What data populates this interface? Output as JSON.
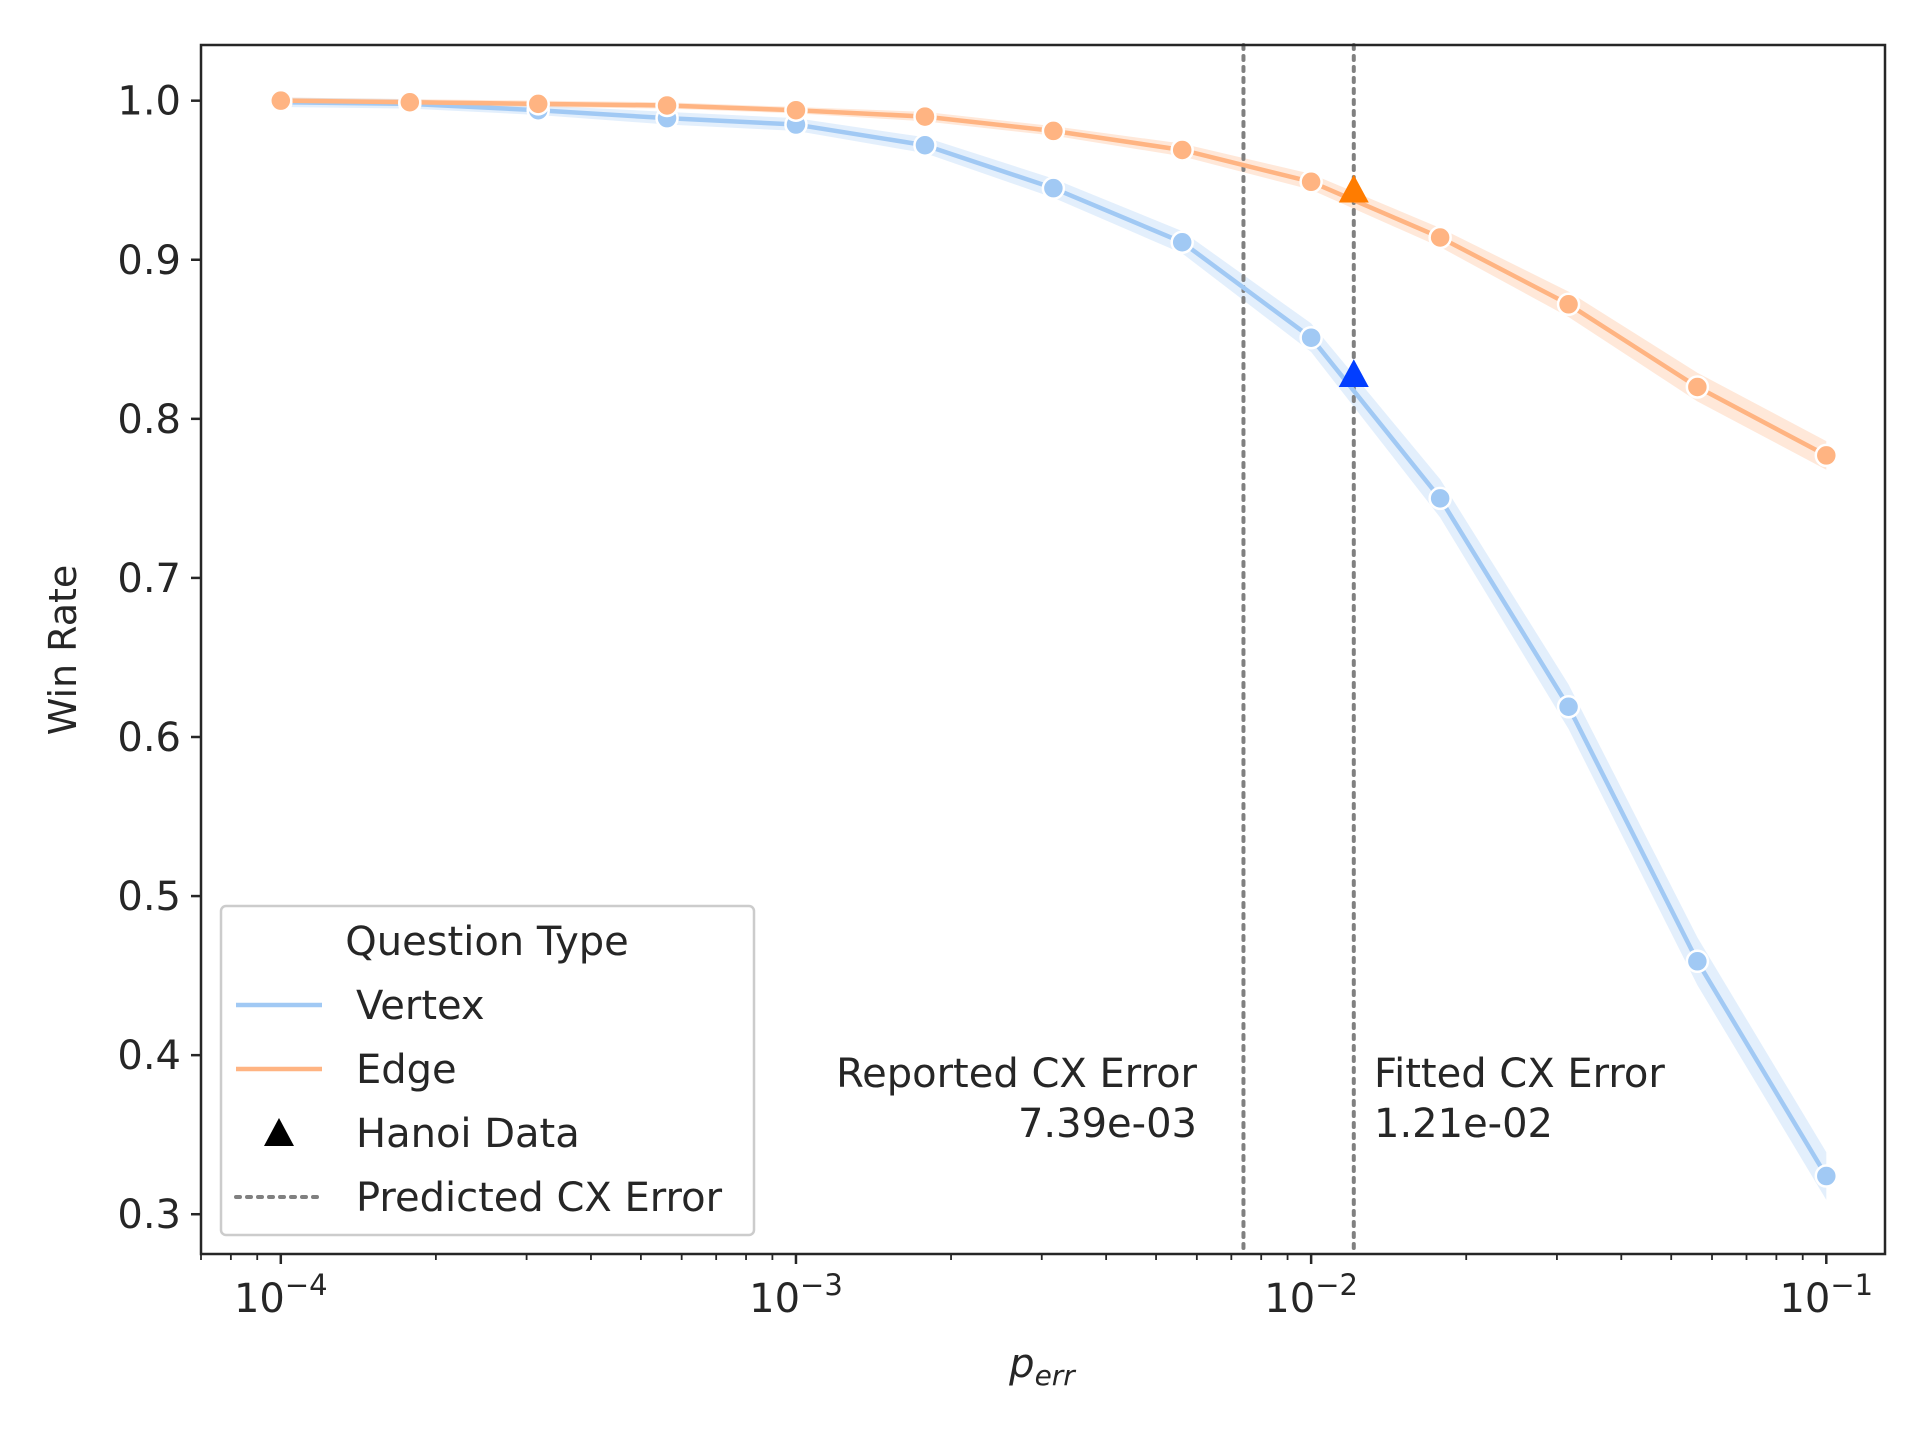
{
  "chart_data": {
    "type": "line",
    "xscale": "log",
    "xlim": [
      7e-05,
      0.13
    ],
    "ylim": [
      0.275,
      1.035
    ],
    "xlabel": "p",
    "xlabel_sub": "err",
    "ylabel": "Win Rate",
    "x_ticks": [
      {
        "value": 0.0001,
        "base": "10",
        "exp": "−4"
      },
      {
        "value": 0.001,
        "base": "10",
        "exp": "−3"
      },
      {
        "value": 0.01,
        "base": "10",
        "exp": "−2"
      },
      {
        "value": 0.1,
        "base": "10",
        "exp": "−1"
      }
    ],
    "y_ticks": [
      {
        "value": 0.3,
        "label": "0.3"
      },
      {
        "value": 0.4,
        "label": "0.4"
      },
      {
        "value": 0.5,
        "label": "0.5"
      },
      {
        "value": 0.6,
        "label": "0.6"
      },
      {
        "value": 0.7,
        "label": "0.7"
      },
      {
        "value": 0.8,
        "label": "0.8"
      },
      {
        "value": 0.9,
        "label": "0.9"
      },
      {
        "value": 1.0,
        "label": "1.0"
      }
    ],
    "x": [
      0.0001,
      0.000178,
      0.000316,
      0.000562,
      0.001,
      0.00178,
      0.00316,
      0.00562,
      0.01,
      0.0178,
      0.0316,
      0.0562,
      0.1
    ],
    "series": [
      {
        "name": "Vertex",
        "color": "#a1c9f4",
        "band_color": "#a1c9f4",
        "values": [
          0.999,
          0.998,
          0.994,
          0.989,
          0.985,
          0.972,
          0.945,
          0.911,
          0.851,
          0.75,
          0.619,
          0.459,
          0.324
        ],
        "band": [
          0.003,
          0.003,
          0.003,
          0.004,
          0.004,
          0.005,
          0.006,
          0.007,
          0.009,
          0.012,
          0.014,
          0.015,
          0.015
        ]
      },
      {
        "name": "Edge",
        "color": "#ffb482",
        "band_color": "#ffb482",
        "values": [
          1.0,
          0.999,
          0.998,
          0.997,
          0.994,
          0.99,
          0.981,
          0.969,
          0.949,
          0.914,
          0.872,
          0.82,
          0.777
        ],
        "band": [
          0.002,
          0.002,
          0.002,
          0.002,
          0.002,
          0.003,
          0.003,
          0.004,
          0.005,
          0.006,
          0.008,
          0.009,
          0.009
        ]
      }
    ],
    "hanoi_points": [
      {
        "x": 0.0121,
        "y": 0.944,
        "color": "#ff7c00"
      },
      {
        "x": 0.0121,
        "y": 0.828,
        "color": "#023eff"
      }
    ],
    "vlines": [
      {
        "x": 0.00739,
        "color": "#808080"
      },
      {
        "x": 0.0121,
        "color": "#808080"
      }
    ],
    "annotations": [
      {
        "id": "reported",
        "lines": [
          "Reported CX Error",
          "7.39e-03"
        ],
        "anchor": "end"
      },
      {
        "id": "fitted",
        "lines": [
          "Fitted CX Error",
          "1.21e-02"
        ],
        "anchor": "start"
      }
    ],
    "legend": {
      "title": "Question Type",
      "placement": "lower-left",
      "entries": [
        {
          "label": "Vertex",
          "kind": "line",
          "color": "#a1c9f4"
        },
        {
          "label": "Edge",
          "kind": "line",
          "color": "#ffb482"
        },
        {
          "label": "Hanoi Data",
          "kind": "triangle",
          "color": "#000000"
        },
        {
          "label": "Predicted CX Error",
          "kind": "dotted",
          "color": "#808080"
        }
      ]
    },
    "grid": false
  }
}
